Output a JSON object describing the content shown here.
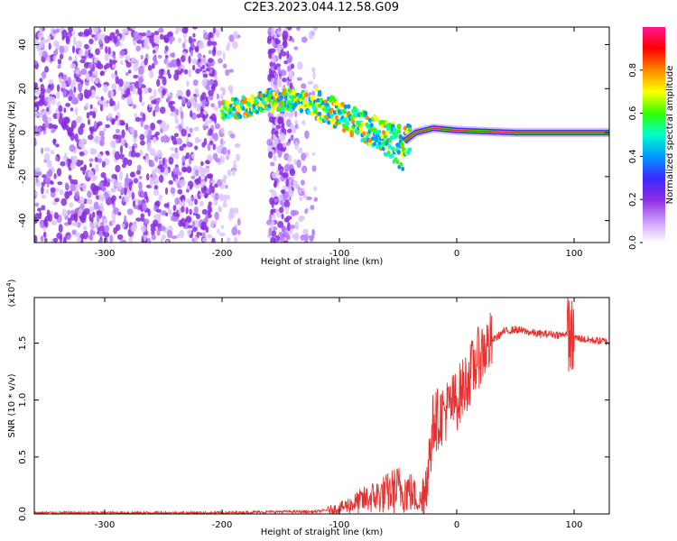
{
  "title": "C2E3.2023.044.12.58.G09",
  "chart_data": [
    {
      "type": "heatmap",
      "name": "spectrogram",
      "xlabel": "Height of straight line (km)",
      "ylabel": "Frequency (Hz)",
      "xlim": [
        -360,
        130
      ],
      "ylim": [
        -50,
        48
      ],
      "xticks": [
        -300,
        -200,
        -100,
        0,
        100
      ],
      "yticks": [
        -40,
        -20,
        0,
        20,
        40
      ],
      "colorbar": {
        "label": "Normalized spectral amplitude",
        "range": [
          0,
          1
        ],
        "ticks": [
          "0.0",
          "0.2",
          "0.4",
          "0.6",
          "0.8"
        ],
        "tick_values": [
          0,
          0.2,
          0.4,
          0.6,
          0.8
        ],
        "colormap": [
          "#ffffff",
          "#cc99ff",
          "#8a2be2",
          "#3a2bff",
          "#0099ff",
          "#00ffcc",
          "#33ff00",
          "#ffff00",
          "#ff8800",
          "#ff0000",
          "#ff1493"
        ]
      },
      "signal_track": [
        {
          "x": -200,
          "f": 10
        },
        {
          "x": -180,
          "f": 12
        },
        {
          "x": -165,
          "f": 14
        },
        {
          "x": -140,
          "f": 15
        },
        {
          "x": -120,
          "f": 13
        },
        {
          "x": -100,
          "f": 8
        },
        {
          "x": -80,
          "f": 3
        },
        {
          "x": -60,
          "f": -2
        },
        {
          "x": -45,
          "f": -4
        },
        {
          "x": -35,
          "f": 0
        },
        {
          "x": -20,
          "f": 2
        },
        {
          "x": 0,
          "f": 1
        },
        {
          "x": 50,
          "f": 0
        },
        {
          "x": 130,
          "f": 0
        }
      ]
    },
    {
      "type": "line",
      "name": "snr",
      "xlabel": "Height of straight line (km)",
      "ylabel": "SNR (10 * v/v)",
      "yscale_label": "(x10^4)",
      "xlim": [
        -360,
        130
      ],
      "ylim": [
        0,
        1.9
      ],
      "xticks": [
        -300,
        -200,
        -100,
        0,
        100
      ],
      "yticks": [
        "0.0",
        "0.5",
        "1.0",
        "1.5"
      ],
      "ytick_values": [
        0,
        0.5,
        1.0,
        1.5
      ],
      "color": "#e8312f",
      "series": [
        {
          "x": [
            -360,
            -300,
            -200,
            -150,
            -120,
            -100,
            -80,
            -60,
            -50,
            -40,
            -30,
            -25,
            -20,
            -10,
            0,
            10,
            20,
            30,
            40,
            50,
            60,
            70,
            80,
            90,
            95,
            100,
            110,
            120,
            130
          ],
          "values": [
            0.01,
            0.01,
            0.01,
            0.02,
            0.02,
            0.05,
            0.12,
            0.18,
            0.22,
            0.2,
            0.1,
            0.35,
            0.8,
            0.9,
            1.0,
            1.2,
            1.4,
            1.52,
            1.6,
            1.62,
            1.6,
            1.58,
            1.58,
            1.57,
            1.6,
            1.55,
            1.53,
            1.52,
            1.51
          ]
        }
      ]
    }
  ]
}
